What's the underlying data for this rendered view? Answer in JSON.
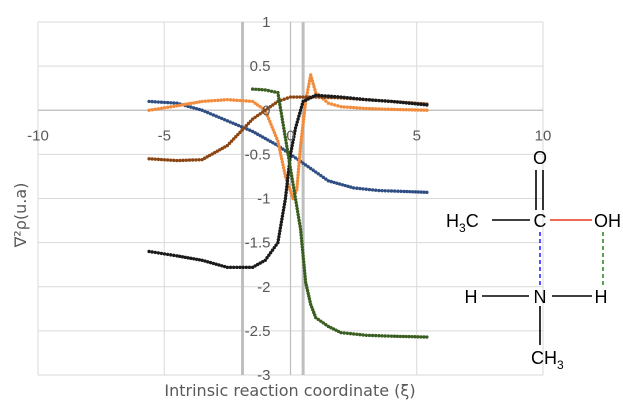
{
  "chart_data": {
    "type": "scatter",
    "title": "",
    "xlabel": "Intrinsic reaction coordinate (ξ)",
    "ylabel": "∇²ρ(u.a)",
    "xlim": [
      -10,
      10
    ],
    "ylim": [
      -3,
      1
    ],
    "xticks": [
      -10,
      -5,
      0,
      5,
      10
    ],
    "yticks": [
      1,
      0.5,
      0,
      -0.5,
      -1,
      -1.5,
      -2,
      -2.5,
      -3
    ],
    "xtick_labels": [
      "-10",
      "-5",
      "0",
      "5",
      "10"
    ],
    "ytick_labels": [
      "1",
      "0.5",
      "0",
      "-0.5",
      "-1",
      "-1.5",
      "-2",
      "-2.5",
      "-3"
    ],
    "grid": true,
    "legend": "none",
    "vertical_lines": [
      -1.9,
      0.5
    ],
    "series": [
      {
        "color": "#2f4f84",
        "x": [
          -5.6,
          -4.5,
          -3.5,
          -2.5,
          -1.5,
          -0.5,
          0.5,
          1.5,
          2.5,
          3.5,
          4.5,
          5.4
        ],
        "y": [
          0.1,
          0.08,
          0.0,
          -0.12,
          -0.24,
          -0.4,
          -0.6,
          -0.8,
          -0.88,
          -0.91,
          -0.92,
          -0.93
        ]
      },
      {
        "color": "#f28c3c",
        "x": [
          -5.6,
          -4.5,
          -3.5,
          -2.5,
          -1.5,
          -1.0,
          -0.5,
          -0.2,
          0.1,
          0.25,
          0.4,
          0.6,
          0.8,
          1.0,
          1.5,
          2.0,
          3.0,
          4.0,
          5.4
        ],
        "y": [
          0.0,
          0.05,
          0.1,
          0.12,
          0.1,
          0.0,
          -0.35,
          -0.75,
          -1.0,
          -0.9,
          -0.4,
          0.1,
          0.4,
          0.2,
          0.08,
          0.04,
          0.02,
          0.01,
          0.0
        ]
      },
      {
        "color": "#8b4513",
        "x": [
          -5.6,
          -4.5,
          -3.5,
          -2.5,
          -1.5,
          -0.5,
          0.0,
          0.5,
          1.0,
          2.0,
          3.0,
          4.0,
          5.4
        ],
        "y": [
          -0.55,
          -0.57,
          -0.56,
          -0.4,
          -0.1,
          0.1,
          0.15,
          0.15,
          0.15,
          0.14,
          0.12,
          0.1,
          0.07
        ]
      },
      {
        "color": "#1a1a1a",
        "x": [
          -5.6,
          -4.5,
          -3.5,
          -2.5,
          -1.5,
          -1.0,
          -0.5,
          -0.2,
          0.0,
          0.2,
          0.5,
          1.0,
          2.0,
          3.0,
          4.0,
          5.4
        ],
        "y": [
          -1.6,
          -1.65,
          -1.7,
          -1.78,
          -1.78,
          -1.7,
          -1.5,
          -1.0,
          -0.5,
          -0.2,
          0.1,
          0.17,
          0.15,
          0.12,
          0.1,
          0.06
        ]
      },
      {
        "color": "#3a5e20",
        "x": [
          -1.5,
          -1.0,
          -0.5,
          0.4,
          0.5,
          0.6,
          0.8,
          1.0,
          1.5,
          2.0,
          3.0,
          4.0,
          5.4
        ],
        "y": [
          0.24,
          0.23,
          0.2,
          -1.35,
          -1.65,
          -1.95,
          -2.2,
          -2.35,
          -2.45,
          -2.52,
          -2.55,
          -2.56,
          -2.57
        ]
      }
    ]
  },
  "molecule": {
    "atoms": {
      "o_top": "O",
      "h3c": "H",
      "h3c_sub": "3",
      "h3c_c": "C",
      "c_center": "C",
      "oh": "OH",
      "h_left": "H",
      "n": "N",
      "h_right": "H",
      "ch3_c": "CH",
      "ch3_sub": "3"
    },
    "colors": {
      "co_bond": "#e8371d",
      "cn_dash": "#2a2aff",
      "oh_dash": "#2e8b2e",
      "bond": "#000000"
    }
  }
}
